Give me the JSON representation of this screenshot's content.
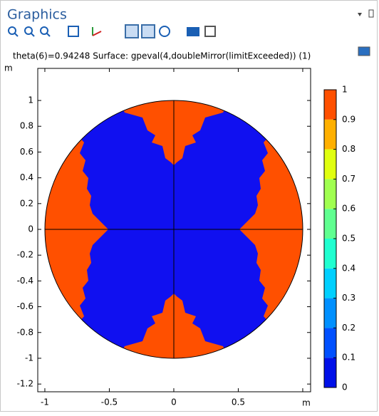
{
  "panel_title": "Graphics",
  "plot": {
    "title": "theta(6)=0.94248   Surface: gpeval(4,doubleMirror(limitExceeded)) (1)",
    "x_unit": "m",
    "y_unit": "m",
    "xlim": [
      -1.055,
      1.061
    ],
    "ylim": [
      -1.26,
      1.249
    ],
    "xticks": [
      -1,
      -0.5,
      0,
      0.5,
      1
    ],
    "yticks": [
      1,
      0.8,
      0.6,
      0.4,
      0.2,
      0,
      -0.2,
      -0.4,
      -0.6,
      -0.8,
      -1,
      -1.2
    ],
    "colorbar": {
      "range": [
        0,
        1
      ],
      "ticks": [
        1,
        0.9,
        0.8,
        0.7,
        0.6,
        0.5,
        0.4,
        0.3,
        0.2,
        0.1,
        0
      ],
      "colors": [
        "#0010e8",
        "#0050ff",
        "#0090ff",
        "#00d0ff",
        "#20ffd0",
        "#60ff90",
        "#a0ff50",
        "#e0ff10",
        "#ffb000",
        "#ff5000"
      ]
    }
  }
}
